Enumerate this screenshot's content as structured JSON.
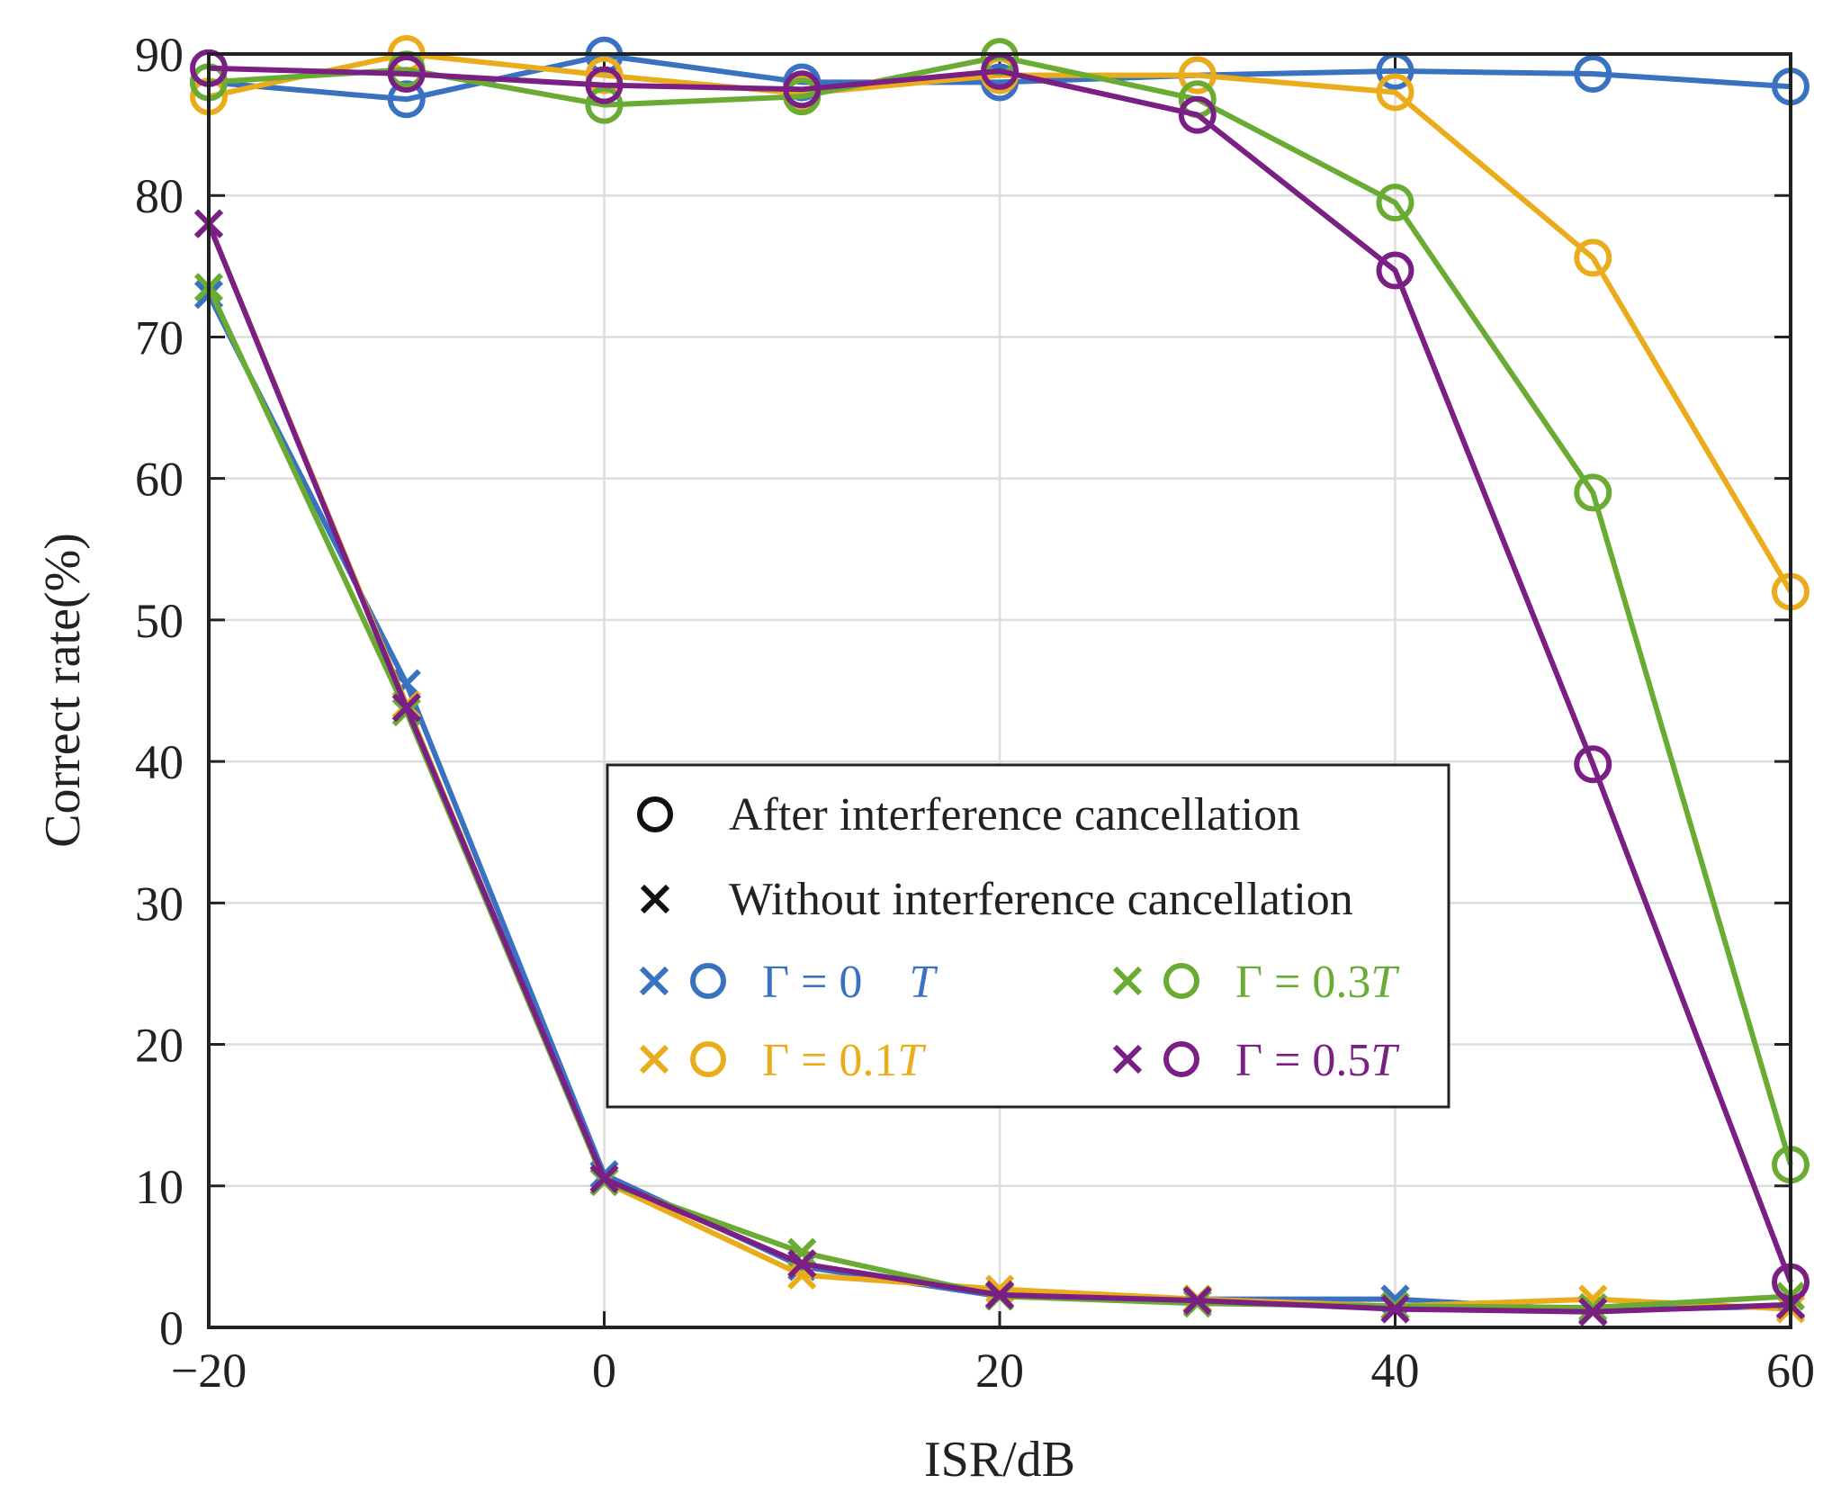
{
  "chart_data": {
    "type": "line",
    "xlabel": "ISR/dB",
    "ylabel": "Correct rate(%)",
    "xlim": [
      -20,
      60
    ],
    "ylim": [
      0,
      90
    ],
    "xticks": [
      -20,
      0,
      20,
      40,
      60
    ],
    "xtick_labels": [
      "−20",
      "0",
      "20",
      "40",
      "60"
    ],
    "yticks": [
      0,
      10,
      20,
      30,
      40,
      50,
      60,
      70,
      80,
      90
    ],
    "grid": true,
    "x": [
      -20,
      -10,
      0,
      10,
      20,
      30,
      40,
      50,
      60
    ],
    "legend": {
      "placement": "center",
      "after_label": "After interference cancellation",
      "without_label": "Without interference cancellation"
    },
    "series": [
      {
        "name": "Γ = 0 T",
        "legend_prefix": "Γ = 0",
        "legend_suffix": "T",
        "color": "#3a72c2",
        "after": [
          88.0,
          86.8,
          89.9,
          88.0,
          88.0,
          88.5,
          88.8,
          88.6,
          87.7
        ],
        "without": [
          73.0,
          45.5,
          10.8,
          4.3,
          2.2,
          2.0,
          2.0,
          1.2,
          1.5
        ]
      },
      {
        "name": "Γ = 0.1T",
        "legend_prefix": "Γ = 0.1",
        "legend_suffix": "T",
        "color": "#eaac1a",
        "after": [
          87.0,
          90.0,
          88.5,
          87.2,
          88.5,
          88.5,
          87.3,
          75.6,
          52.0
        ],
        "without": [
          78.0,
          44.0,
          10.3,
          3.7,
          2.7,
          2.0,
          1.5,
          2.0,
          1.3
        ]
      },
      {
        "name": "Γ = 0.3T",
        "legend_prefix": "Γ = 0.3",
        "legend_suffix": "T",
        "color": "#6aab33",
        "after": [
          88.0,
          88.9,
          86.4,
          87.0,
          89.8,
          86.8,
          79.5,
          59.0,
          11.5
        ],
        "without": [
          73.5,
          43.5,
          10.3,
          5.3,
          2.2,
          1.7,
          1.5,
          1.4,
          2.2
        ]
      },
      {
        "name": "Γ = 0.5T",
        "legend_prefix": "Γ = 0.5",
        "legend_suffix": "T",
        "color": "#7a2084",
        "after": [
          89.0,
          88.6,
          87.8,
          87.5,
          88.8,
          85.7,
          74.7,
          39.8,
          3.2
        ],
        "without": [
          78.0,
          43.8,
          10.5,
          4.5,
          2.3,
          1.9,
          1.3,
          1.1,
          1.6
        ]
      }
    ]
  }
}
